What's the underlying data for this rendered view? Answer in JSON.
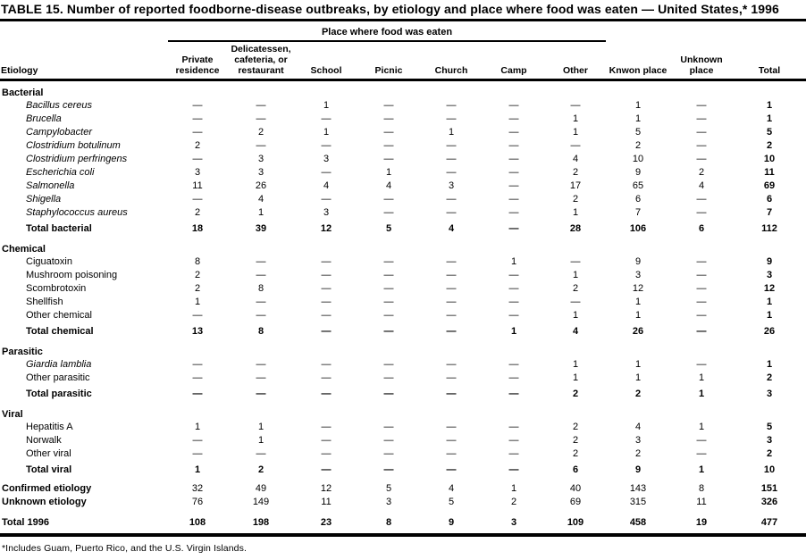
{
  "title": "TABLE 15. Number of reported foodborne-disease outbreaks, by etiology and place where food was eaten — United States,* 1996",
  "header": {
    "group_label": "Place where food was eaten",
    "etiology_label": "Etiology",
    "columns": [
      "Private residence",
      "Delicatessen, cafeteria, or restaurant",
      "School",
      "Picnic",
      "Church",
      "Camp",
      "Other",
      "Knwon place",
      "Unknown place",
      "Total"
    ]
  },
  "sections": [
    {
      "name": "Bacterial",
      "rows": [
        {
          "label": "Bacillus cereus",
          "italic": true,
          "values": [
            "—",
            "—",
            "1",
            "—",
            "—",
            "—",
            "—",
            "1",
            "—",
            "1"
          ]
        },
        {
          "label": "Brucella",
          "italic": true,
          "values": [
            "—",
            "—",
            "—",
            "—",
            "—",
            "—",
            "1",
            "1",
            "—",
            "1"
          ]
        },
        {
          "label": "Campylobacter",
          "italic": true,
          "values": [
            "—",
            "2",
            "1",
            "—",
            "1",
            "—",
            "1",
            "5",
            "—",
            "5"
          ]
        },
        {
          "label": "Clostridium botulinum",
          "italic": true,
          "values": [
            "2",
            "—",
            "—",
            "—",
            "—",
            "—",
            "—",
            "2",
            "—",
            "2"
          ]
        },
        {
          "label": "Clostridium perfringens",
          "italic": true,
          "values": [
            "—",
            "3",
            "3",
            "—",
            "—",
            "—",
            "4",
            "10",
            "—",
            "10"
          ]
        },
        {
          "label": "Escherichia coli",
          "italic": true,
          "values": [
            "3",
            "3",
            "—",
            "1",
            "—",
            "—",
            "2",
            "9",
            "2",
            "11"
          ]
        },
        {
          "label": "Salmonella",
          "italic": true,
          "values": [
            "11",
            "26",
            "4",
            "4",
            "3",
            "—",
            "17",
            "65",
            "4",
            "69"
          ]
        },
        {
          "label": "Shigella",
          "italic": true,
          "values": [
            "—",
            "4",
            "—",
            "—",
            "—",
            "—",
            "2",
            "6",
            "—",
            "6"
          ]
        },
        {
          "label": "Staphylococcus aureus",
          "italic": true,
          "values": [
            "2",
            "1",
            "3",
            "—",
            "—",
            "—",
            "1",
            "7",
            "—",
            "7"
          ]
        }
      ],
      "total_row": {
        "label": "Total bacterial",
        "values": [
          "18",
          "39",
          "12",
          "5",
          "4",
          "—",
          "28",
          "106",
          "6",
          "112"
        ]
      }
    },
    {
      "name": "Chemical",
      "rows": [
        {
          "label": "Ciguatoxin",
          "italic": false,
          "values": [
            "8",
            "—",
            "—",
            "—",
            "—",
            "1",
            "—",
            "9",
            "—",
            "9"
          ]
        },
        {
          "label": "Mushroom poisoning",
          "italic": false,
          "values": [
            "2",
            "—",
            "—",
            "—",
            "—",
            "—",
            "1",
            "3",
            "—",
            "3"
          ]
        },
        {
          "label": "Scombrotoxin",
          "italic": false,
          "values": [
            "2",
            "8",
            "—",
            "—",
            "—",
            "—",
            "2",
            "12",
            "—",
            "12"
          ]
        },
        {
          "label": "Shellfish",
          "italic": false,
          "values": [
            "1",
            "—",
            "—",
            "—",
            "—",
            "—",
            "—",
            "1",
            "—",
            "1"
          ]
        },
        {
          "label": "Other chemical",
          "italic": false,
          "values": [
            "—",
            "—",
            "—",
            "—",
            "—",
            "—",
            "1",
            "1",
            "—",
            "1"
          ]
        }
      ],
      "total_row": {
        "label": "Total chemical",
        "values": [
          "13",
          "8",
          "—",
          "—",
          "—",
          "1",
          "4",
          "26",
          "—",
          "26"
        ]
      }
    },
    {
      "name": "Parasitic",
      "rows": [
        {
          "label": "Giardia lamblia",
          "italic": true,
          "values": [
            "—",
            "—",
            "—",
            "—",
            "—",
            "—",
            "1",
            "1",
            "—",
            "1"
          ]
        },
        {
          "label": "Other parasitic",
          "italic": false,
          "values": [
            "—",
            "—",
            "—",
            "—",
            "—",
            "—",
            "1",
            "1",
            "1",
            "2"
          ]
        }
      ],
      "total_row": {
        "label": "Total parasitic",
        "values": [
          "—",
          "—",
          "—",
          "—",
          "—",
          "—",
          "2",
          "2",
          "1",
          "3"
        ]
      }
    },
    {
      "name": "Viral",
      "rows": [
        {
          "label": "Hepatitis A",
          "italic": false,
          "values": [
            "1",
            "1",
            "—",
            "—",
            "—",
            "—",
            "2",
            "4",
            "1",
            "5"
          ]
        },
        {
          "label": "Norwalk",
          "italic": false,
          "values": [
            "—",
            "1",
            "—",
            "—",
            "—",
            "—",
            "2",
            "3",
            "—",
            "3"
          ]
        },
        {
          "label": "Other viral",
          "italic": false,
          "values": [
            "—",
            "—",
            "—",
            "—",
            "—",
            "—",
            "2",
            "2",
            "—",
            "2"
          ]
        }
      ],
      "total_row": {
        "label": "Total viral",
        "values": [
          "1",
          "2",
          "—",
          "—",
          "—",
          "—",
          "6",
          "9",
          "1",
          "10"
        ]
      }
    }
  ],
  "summary_rows": [
    {
      "label": "Confirmed etiology",
      "values": [
        "32",
        "49",
        "12",
        "5",
        "4",
        "1",
        "40",
        "143",
        "8",
        "151"
      ]
    },
    {
      "label": "Unknown etiology",
      "values": [
        "76",
        "149",
        "11",
        "3",
        "5",
        "2",
        "69",
        "315",
        "11",
        "326"
      ]
    }
  ],
  "grand_total_row": {
    "label": "Total 1996",
    "values": [
      "108",
      "198",
      "23",
      "8",
      "9",
      "3",
      "109",
      "458",
      "19",
      "477"
    ]
  },
  "footnote": "*Includes Guam, Puerto Rico, and the U.S. Virgin Islands."
}
